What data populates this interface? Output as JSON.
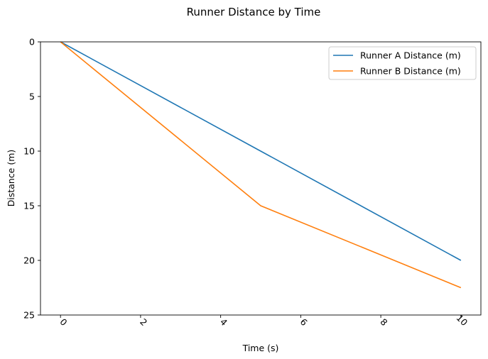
{
  "chart_data": {
    "type": "line",
    "title": "Runner Distance by Time",
    "xlabel": "Time (s)",
    "ylabel": "Distance (m)",
    "xlim": [
      -0.5,
      10.5
    ],
    "ylim": [
      0,
      25
    ],
    "y_inverted": true,
    "grid": false,
    "legend_position": "top-right",
    "x_tick_rotation": 45,
    "x_ticks": [
      0,
      2,
      4,
      6,
      8,
      10
    ],
    "y_ticks": [
      0,
      5,
      10,
      15,
      20,
      25
    ],
    "x_tick_labels": [
      "0",
      "2",
      "4",
      "6",
      "8",
      "10"
    ],
    "y_tick_labels": [
      "0",
      "5",
      "10",
      "15",
      "20",
      "25"
    ],
    "series": [
      {
        "name": "Runner A Distance (m)",
        "color": "#1f77b4",
        "x": [
          0,
          5,
          10
        ],
        "y": [
          0,
          10,
          20
        ]
      },
      {
        "name": "Runner B Distance (m)",
        "color": "#ff7f0e",
        "x": [
          0,
          5,
          10
        ],
        "y": [
          0,
          15,
          22.5
        ]
      }
    ]
  }
}
